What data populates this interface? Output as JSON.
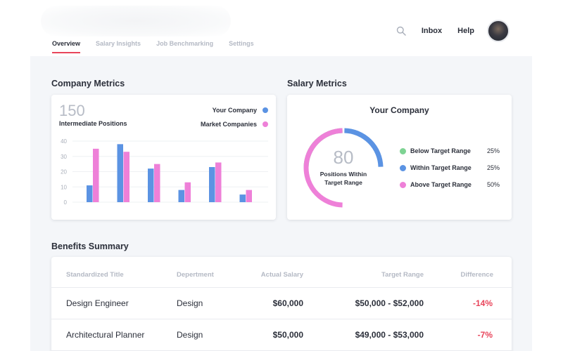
{
  "header": {
    "tabs": [
      {
        "label": "Overview",
        "active": true
      },
      {
        "label": "Salary Insights",
        "active": false
      },
      {
        "label": "Job Benchmarking",
        "active": false
      },
      {
        "label": "Settings",
        "active": false
      }
    ],
    "nav": {
      "inbox": "Inbox",
      "help": "Help"
    },
    "icons": {
      "search": "search-icon",
      "avatar": "user-avatar"
    }
  },
  "company_metrics": {
    "title": "Company Metrics",
    "big_number": "150",
    "subtitle": "Intermediate Positions",
    "legend": {
      "your_company": "Your Company",
      "market": "Market Companies"
    }
  },
  "salary_metrics": {
    "title": "Salary Metrics",
    "card_title": "Your Company",
    "center_number": "80",
    "center_label_line1": "Positions Within",
    "center_label_line2": "Target Range",
    "legend": [
      {
        "label": "Below Target Range",
        "value": "25%",
        "color": "#7ed393"
      },
      {
        "label": "Within Target Range",
        "value": "25%",
        "color": "#5b93e3"
      },
      {
        "label": "Above Target Range",
        "value": "50%",
        "color": "#ee80d8"
      }
    ]
  },
  "benefits": {
    "title": "Benefits Summary",
    "columns": [
      "Standardized Title",
      "Depertment",
      "Actual Salary",
      "Target Range",
      "Difference"
    ],
    "rows": [
      {
        "title": "Design Engineer",
        "department": "Design",
        "salary": "$60,000",
        "range": "$50,000 - $52,000",
        "difference": "-14%"
      },
      {
        "title": "Architectural Planner",
        "department": "Design",
        "salary": "$50,000",
        "range": "$49,000 - $53,000",
        "difference": "-7%"
      }
    ]
  },
  "colors": {
    "accent": "#e8455b",
    "your_company": "#5b93e3",
    "market": "#ee80d8",
    "below": "#7ed393"
  },
  "chart_data": {
    "type": "bar",
    "categories": [
      "",
      "",
      "",
      "",
      "",
      ""
    ],
    "series": [
      {
        "name": "Your Company",
        "color": "#5b93e3",
        "values": [
          11,
          38,
          22,
          8,
          23,
          5
        ]
      },
      {
        "name": "Market Companies",
        "color": "#ee80d8",
        "values": [
          35,
          33,
          25,
          13,
          26,
          8
        ]
      }
    ],
    "yticks": [
      "0",
      "10",
      "20",
      "30",
      "40"
    ],
    "ylim": [
      0,
      40
    ],
    "grid": true
  },
  "donut_data": {
    "type": "pie",
    "segments": [
      {
        "label": "Below Target Range",
        "value": 25,
        "color": "#7ed393"
      },
      {
        "label": "Within Target Range",
        "value": 25,
        "color": "#5b93e3"
      },
      {
        "label": "Above Target Range",
        "value": 50,
        "color": "#ee80d8"
      }
    ]
  }
}
